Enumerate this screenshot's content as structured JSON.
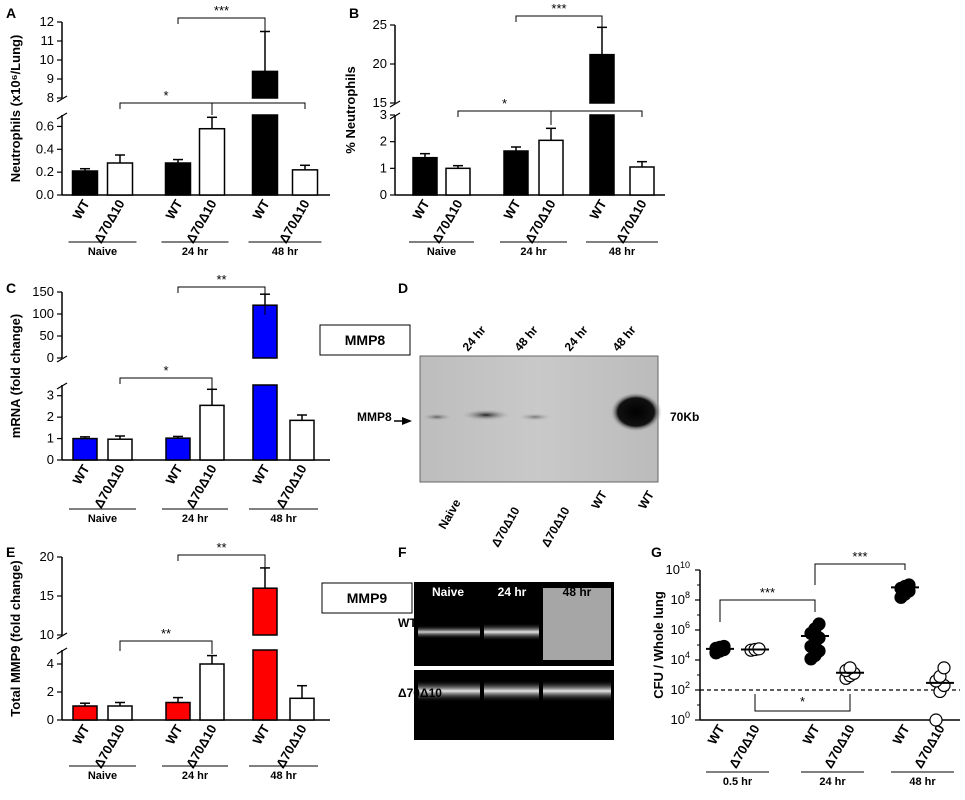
{
  "chart_data": [
    {
      "panel": "A",
      "type": "bar",
      "ylabel": "Neutrophils (x10⁶/Lung)",
      "axis_break": {
        "lower": [
          0,
          0.7
        ],
        "upper": [
          8,
          12
        ]
      },
      "lower_ticks": [
        "0.0",
        "0.2",
        "0.4",
        "0.6"
      ],
      "upper_ticks": [
        "8",
        "9",
        "10",
        "11",
        "12"
      ],
      "bar_color": "#000000",
      "categories": [
        "WT",
        "Δ70Δ10",
        "WT",
        "Δ70Δ10",
        "WT",
        "Δ70Δ10"
      ],
      "groups": [
        "Naive",
        "24 hr",
        "48 hr"
      ],
      "values": [
        0.21,
        0.28,
        0.28,
        0.58,
        9.4,
        0.22
      ],
      "errors": [
        0.02,
        0.07,
        0.03,
        0.1,
        2.1,
        0.04
      ],
      "significance": [
        {
          "from": 1,
          "to": 3,
          "label": "*"
        },
        {
          "from": 3,
          "to": 5,
          "label": "*"
        },
        {
          "from": 2,
          "to": 4,
          "label": "***"
        }
      ]
    },
    {
      "panel": "B",
      "type": "bar",
      "ylabel": "% Neutrophils",
      "axis_break": {
        "lower": [
          0,
          3
        ],
        "upper": [
          15,
          25
        ]
      },
      "lower_ticks": [
        "0",
        "1",
        "2",
        "3"
      ],
      "upper_ticks": [
        "15",
        "20",
        "25"
      ],
      "bar_color": "#000000",
      "categories": [
        "WT",
        "Δ70Δ10",
        "WT",
        "Δ70Δ10",
        "WT",
        "Δ70Δ10"
      ],
      "groups": [
        "Naive",
        "24 hr",
        "48 hr"
      ],
      "values": [
        1.4,
        1.0,
        1.65,
        2.05,
        21.2,
        1.05
      ],
      "errors": [
        0.15,
        0.1,
        0.15,
        0.45,
        3.5,
        0.2
      ],
      "significance": [
        {
          "from": 1,
          "to": 3,
          "label": "*"
        },
        {
          "from": 3,
          "to": 5,
          "label": "*"
        },
        {
          "from": 2,
          "to": 4,
          "label": "***"
        }
      ]
    },
    {
      "panel": "C",
      "type": "bar",
      "ylabel": "mRNA (fold change)",
      "axis_break": {
        "lower": [
          0,
          3.5
        ],
        "upper": [
          0,
          150
        ]
      },
      "lower_ticks": [
        "0",
        "1",
        "2",
        "3"
      ],
      "upper_ticks": [
        "0",
        "50",
        "100",
        "150"
      ],
      "bar_color": "#0000ff",
      "categories": [
        "WT",
        "Δ70Δ10",
        "WT",
        "Δ70Δ10",
        "WT",
        "Δ70Δ10"
      ],
      "groups": [
        "Naive",
        "24 hr",
        "48 hr"
      ],
      "values": [
        1.0,
        0.97,
        1.02,
        2.55,
        120,
        1.85
      ],
      "errors": [
        0.08,
        0.15,
        0.08,
        0.75,
        25,
        0.25
      ],
      "significance": [
        {
          "from": 1,
          "to": 3,
          "label": "*"
        },
        {
          "from": 2,
          "to": 4,
          "label": "**"
        }
      ]
    },
    {
      "panel": "E",
      "type": "bar",
      "ylabel": "Total MMP9 (fold change)",
      "axis_break": {
        "lower": [
          0,
          5
        ],
        "upper": [
          10,
          20
        ]
      },
      "lower_ticks": [
        "0",
        "2",
        "4"
      ],
      "upper_ticks": [
        "10",
        "15",
        "20"
      ],
      "bar_color": "#ff0000",
      "categories": [
        "WT",
        "Δ70Δ10",
        "WT",
        "Δ70Δ10",
        "WT",
        "Δ70Δ10"
      ],
      "groups": [
        "Naive",
        "24 hr",
        "48 hr"
      ],
      "values": [
        1.0,
        1.0,
        1.25,
        4.0,
        16.0,
        1.55
      ],
      "errors": [
        0.2,
        0.25,
        0.35,
        0.6,
        2.6,
        0.9
      ],
      "significance": [
        {
          "from": 1,
          "to": 3,
          "label": "**"
        },
        {
          "from": 2,
          "to": 4,
          "label": "**"
        }
      ]
    },
    {
      "panel": "G",
      "type": "scatter",
      "ylabel": "CFU / Whole lung",
      "yscale": "log",
      "ylim": [
        1,
        10000000000
      ],
      "y_ticks": [
        {
          "base": "10",
          "exp": "0"
        },
        {
          "base": "10",
          "exp": "2"
        },
        {
          "base": "10",
          "exp": "4"
        },
        {
          "base": "10",
          "exp": "6"
        },
        {
          "base": "10",
          "exp": "8"
        },
        {
          "base": "10",
          "exp": "10"
        }
      ],
      "detection_limit": 100,
      "categories": [
        "WT",
        "Δ70Δ10",
        "WT",
        "Δ70Δ10",
        "WT",
        "Δ70Δ10"
      ],
      "groups": [
        "0.5 hr",
        "24 hr",
        "48 hr"
      ],
      "filled": [
        true,
        false,
        true,
        false,
        true,
        false
      ],
      "points": [
        [
          30000,
          40000,
          50000,
          60000,
          70000,
          80000
        ],
        [
          45000,
          50000,
          55000
        ],
        [
          12000,
          20000,
          40000,
          80000,
          150000,
          300000,
          600000,
          1200000,
          2500000
        ],
        [
          600,
          900,
          1300,
          2000,
          3000
        ],
        [
          150000000,
          250000000,
          400000000,
          600000000,
          800000000,
          1000000000
        ],
        [
          1,
          80,
          200,
          400,
          800,
          3000
        ]
      ],
      "means": [
        55000,
        50000,
        400000,
        1400,
        700000000,
        300
      ],
      "significance": [
        {
          "from": 0,
          "to": 2,
          "label": "***",
          "position": "above"
        },
        {
          "from": 2,
          "to": 4,
          "label": "***",
          "position": "above"
        },
        {
          "from": 1,
          "to": 3,
          "label": "*",
          "position": "below"
        }
      ]
    }
  ],
  "panels": {
    "A": "A",
    "B": "B",
    "C": "C",
    "D": "D",
    "E": "E",
    "F": "F",
    "G": "G"
  },
  "mmp8_box": "MMP8",
  "mmp9_box": "MMP9",
  "blot_d": {
    "top_labels": [
      "24 hr",
      "48 hr",
      "24 hr",
      "48 hr"
    ],
    "bottom_labels": [
      "Naive",
      "Δ70Δ10",
      "Δ70Δ10",
      "WT",
      "WT"
    ],
    "band_label": "MMP8",
    "size_label": "70Kb"
  },
  "blot_f": {
    "col_labels": [
      "Naive",
      "24 hr",
      "48 hr"
    ],
    "row_labels": [
      "WT",
      "Δ70Δ10"
    ]
  }
}
